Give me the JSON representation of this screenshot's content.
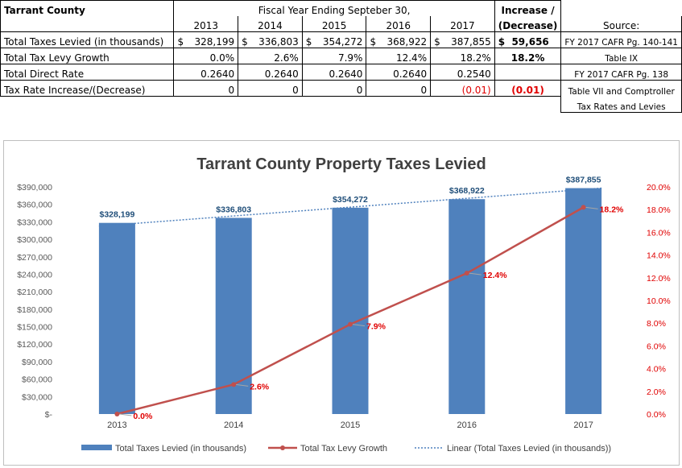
{
  "table": {
    "title": "Tarrant County",
    "fiscal_header": "Fiscal Year Ending Septeber 30,",
    "years": [
      "2013",
      "2014",
      "2015",
      "2016",
      "2017"
    ],
    "increase_header_1": "Increase /",
    "increase_header_2": "(Decrease)",
    "source_header": "Source:",
    "rows": [
      {
        "label": "Total Taxes Levied (in thousands)",
        "values": [
          "328,199",
          "336,803",
          "354,272",
          "368,922",
          "387,855"
        ],
        "currency": "$",
        "increase": "$  59,656",
        "source": "FY 2017 CAFR Pg. 140-141"
      },
      {
        "label": "Total Tax Levy Growth",
        "values": [
          "0.0%",
          "2.6%",
          "7.9%",
          "12.4%",
          "18.2%"
        ],
        "increase": "18.2%",
        "source": "Table IX"
      },
      {
        "label": "Total Direct Rate",
        "values": [
          "0.2640",
          "0.2640",
          "0.2640",
          "0.2640",
          "0.2540"
        ],
        "increase": "",
        "source": "FY 2017 CAFR Pg. 138"
      },
      {
        "label": "Tax Rate Increase/(Decrease)",
        "values": [
          "0",
          "0",
          "0",
          "0",
          "(0.01)"
        ],
        "increase": "(0.01)",
        "source": "Table VII and  Comptroller",
        "source_2": "Tax Rates and Levies"
      }
    ]
  },
  "chart_data": {
    "type": "bar",
    "title": "Tarrant County Property Taxes Levied",
    "categories": [
      "2013",
      "2014",
      "2015",
      "2016",
      "2017"
    ],
    "series": [
      {
        "name": "Total Taxes Levied (in thousands)",
        "type": "bar",
        "axis": "left",
        "color": "#4f81bd",
        "values": [
          328199,
          336803,
          354272,
          368922,
          387855
        ],
        "labels": [
          "$328,199",
          "$336,803",
          "$354,272",
          "$368,922",
          "$387,855"
        ]
      },
      {
        "name": "Total Tax Levy Growth",
        "type": "line",
        "axis": "right",
        "color": "#c0504d",
        "values": [
          0.0,
          2.6,
          7.9,
          12.4,
          18.2
        ],
        "labels": [
          "0.0%",
          "2.6%",
          "7.9%",
          "12.4%",
          "18.2%"
        ]
      },
      {
        "name": "Linear (Total Taxes Levied (in thousands))",
        "type": "trendline",
        "color": "#4f81bd"
      }
    ],
    "y_left": {
      "min": 0,
      "max": 390000,
      "ticks": [
        "$-",
        "$30,000",
        "$60,000",
        "$90,000",
        "$120,000",
        "$150,000",
        "$180,000",
        "$210,000",
        "$240,000",
        "$270,000",
        "$300,000",
        "$330,000",
        "$360,000",
        "$390,000"
      ]
    },
    "y_right": {
      "min": 0,
      "max": 20,
      "ticks": [
        "0.0%",
        "2.0%",
        "4.0%",
        "6.0%",
        "8.0%",
        "10.0%",
        "12.0%",
        "14.0%",
        "16.0%",
        "18.0%",
        "20.0%"
      ]
    },
    "legend_position": "bottom",
    "grid": false,
    "colors": {
      "bar": "#4f81bd",
      "line": "#c0504d",
      "right_axis_text": "#e00000",
      "title": "#404040"
    }
  }
}
